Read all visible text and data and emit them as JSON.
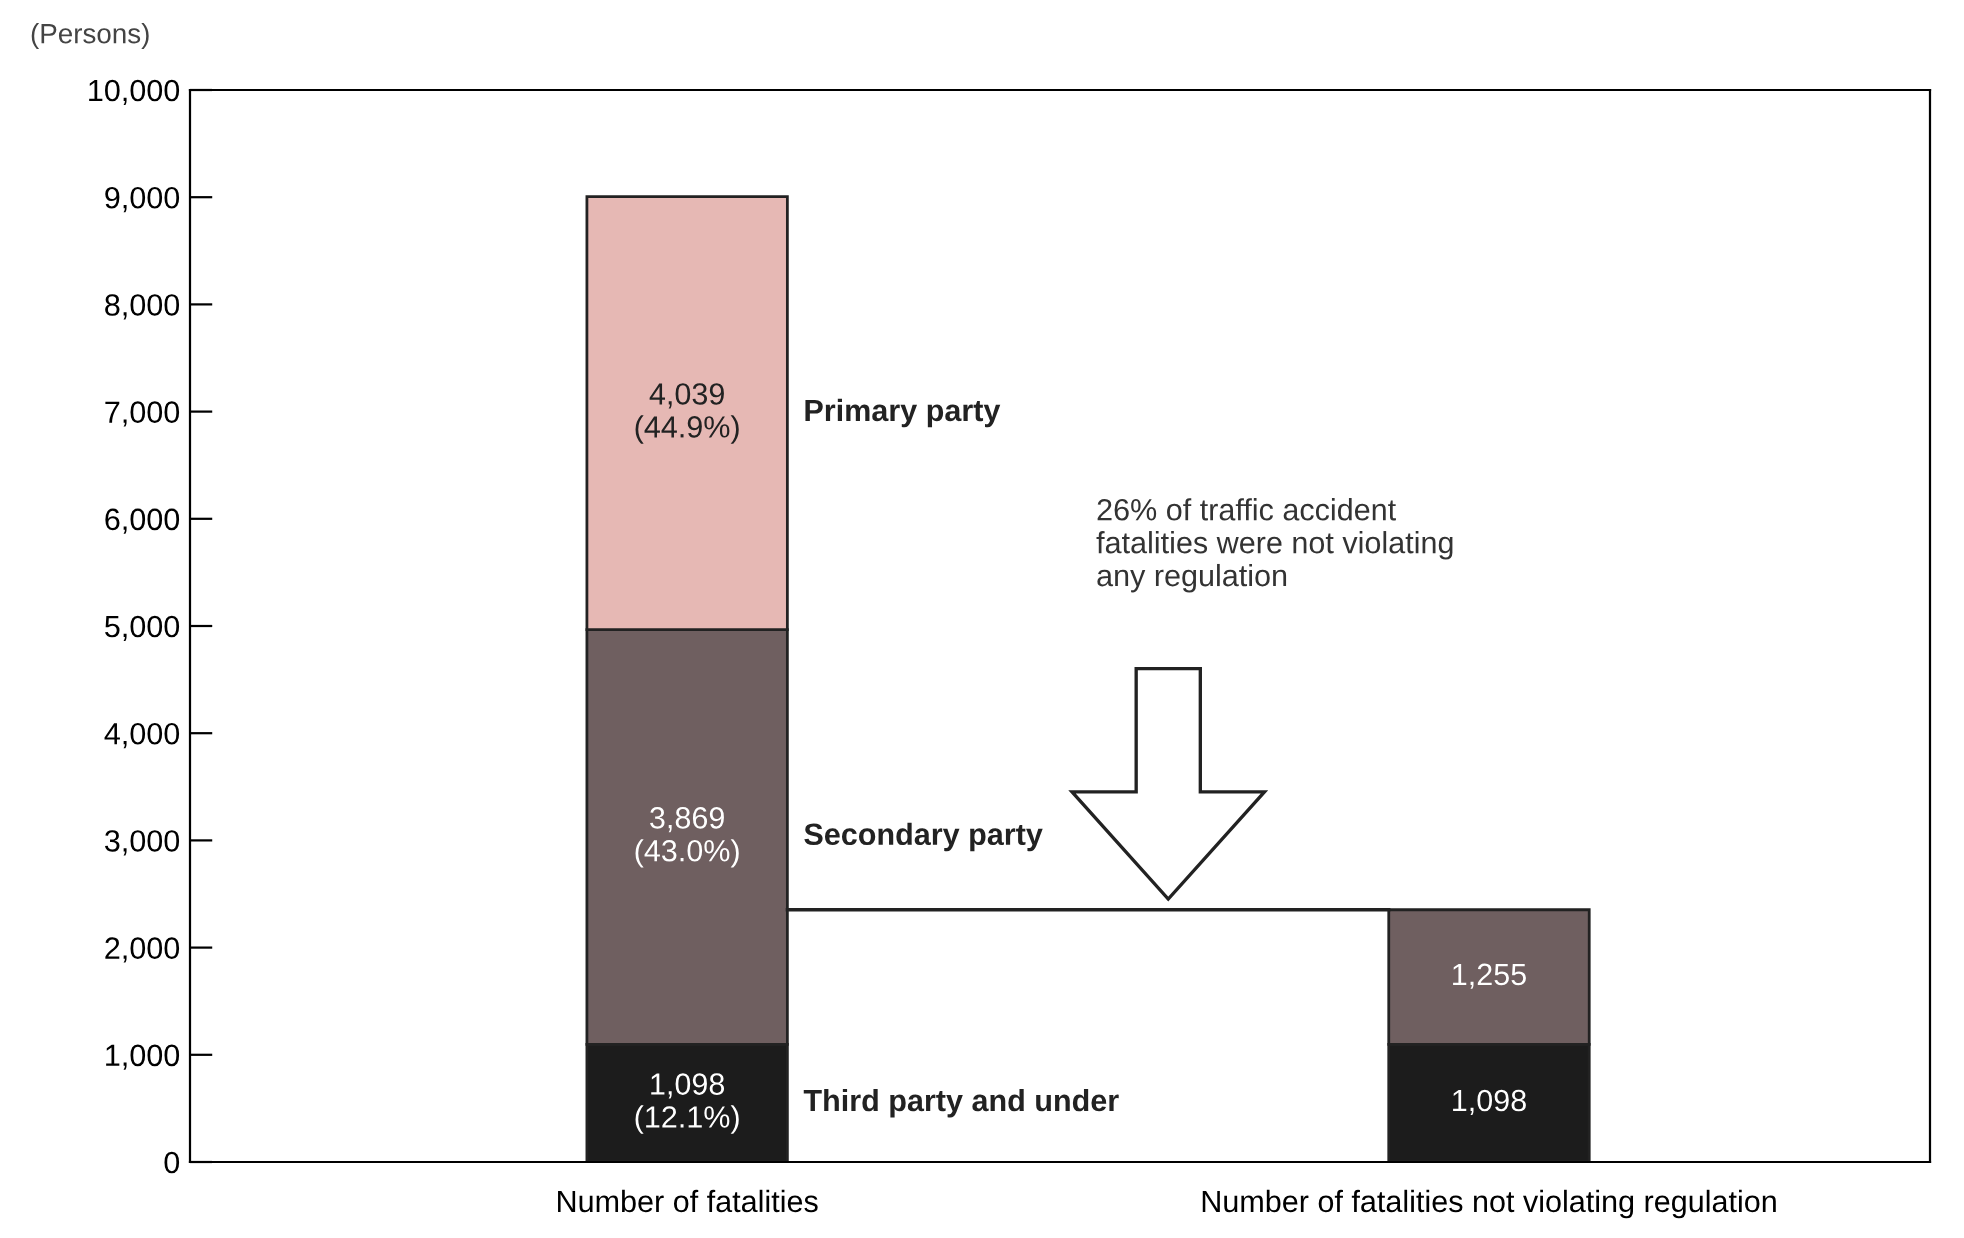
{
  "chart_data": {
    "type": "bar",
    "stacked": true,
    "ylabel": "(Persons)",
    "categories": [
      "Number of fatalities",
      "Number of fatalities not violating regulation"
    ],
    "series": [
      {
        "name": "Third party and under",
        "color": "#1c1c1c",
        "values": [
          1098,
          1098
        ],
        "value_labels": [
          "1,098\n(12.1%)",
          "1,098"
        ]
      },
      {
        "name": "Secondary party",
        "color": "#6f5f60",
        "values": [
          3869,
          1255
        ],
        "value_labels": [
          "3,869\n(43.0%)",
          "1,255"
        ]
      },
      {
        "name": "Primary party",
        "color": "#e6b8b4",
        "values": [
          4039,
          null
        ],
        "value_labels": [
          "4,039\n(44.9%)",
          null
        ]
      }
    ],
    "ylim": [
      0,
      10000
    ],
    "yticks": [
      {
        "value": 0,
        "label": "0"
      },
      {
        "value": 1000,
        "label": "1,000"
      },
      {
        "value": 2000,
        "label": "2,000"
      },
      {
        "value": 3000,
        "label": "3,000"
      },
      {
        "value": 4000,
        "label": "4,000"
      },
      {
        "value": 5000,
        "label": "5,000"
      },
      {
        "value": 6000,
        "label": "6,000"
      },
      {
        "value": 7000,
        "label": "7,000"
      },
      {
        "value": 8000,
        "label": "8,000"
      },
      {
        "value": 9000,
        "label": "9,000"
      },
      {
        "value": 10000,
        "label": "10,000"
      }
    ],
    "annotations": [
      "26% of traffic accident\nfatalities were not violating\nany regulation"
    ],
    "grid": false,
    "legend": false
  }
}
